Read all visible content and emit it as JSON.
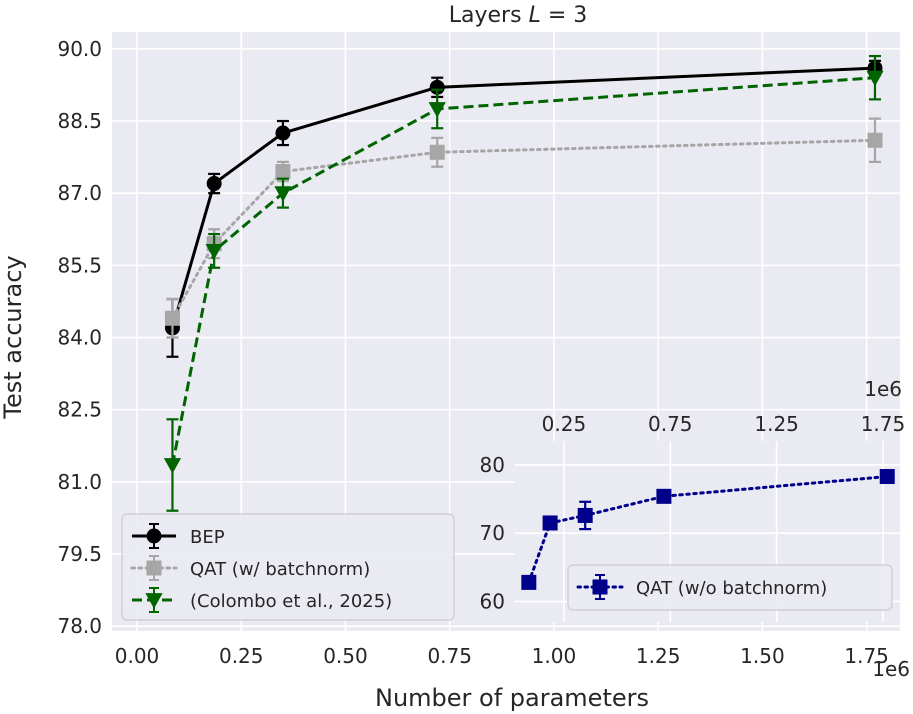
{
  "chart_data": [
    {
      "type": "line",
      "title": "Layers L = 3",
      "title_prefix": "Layers",
      "title_var": "L",
      "title_rest": " = 3",
      "xlabel": "Number of parameters",
      "ylabel": "Test accuracy",
      "x_multiplier_label": "1e6",
      "xlim": [
        -0.06,
        1.83
      ],
      "ylim": [
        77.9,
        90.35
      ],
      "x_ticks": [
        0.0,
        0.25,
        0.5,
        0.75,
        1.0,
        1.25,
        1.5,
        1.75
      ],
      "x_tick_labels": [
        "0.00",
        "0.25",
        "0.50",
        "0.75",
        "1.00",
        "1.25",
        "1.50",
        "1.75"
      ],
      "y_ticks": [
        78.0,
        79.5,
        81.0,
        82.5,
        84.0,
        85.5,
        87.0,
        88.5,
        90.0
      ],
      "y_tick_labels": [
        "78.0",
        "79.5",
        "81.0",
        "82.5",
        "84.0",
        "85.5",
        "87.0",
        "88.5",
        "90.0"
      ],
      "grid": true,
      "legend_position": "lower-left",
      "series": [
        {
          "name": "BEP",
          "color": "#000000",
          "linestyle": "solid",
          "marker": "circle",
          "x": [
            0.085,
            0.185,
            0.35,
            0.72,
            1.77
          ],
          "y": [
            84.2,
            87.2,
            88.25,
            89.2,
            89.6
          ],
          "err": [
            0.6,
            0.2,
            0.25,
            0.2,
            0.15
          ]
        },
        {
          "name": "QAT (w/ batchnorm)",
          "color": "#a6a6a6",
          "linestyle": "dotted",
          "marker": "square",
          "x": [
            0.085,
            0.185,
            0.35,
            0.72,
            1.77
          ],
          "y": [
            84.4,
            85.95,
            87.45,
            87.85,
            88.1
          ],
          "err": [
            0.4,
            0.3,
            0.2,
            0.3,
            0.45
          ]
        },
        {
          "name": "(Colombo et al., 2025)",
          "color": "#006400",
          "linestyle": "dashed",
          "marker": "triangle-down",
          "x": [
            0.085,
            0.185,
            0.35,
            0.72,
            1.77
          ],
          "y": [
            81.35,
            85.8,
            87.0,
            88.75,
            89.4
          ],
          "err": [
            0.95,
            0.35,
            0.3,
            0.4,
            0.45
          ]
        }
      ]
    },
    {
      "type": "line",
      "inset": true,
      "x_multiplier_label": "1e6",
      "x_axis_position": "top",
      "xlim": [
        0.02,
        1.83
      ],
      "ylim": [
        57,
        83.5
      ],
      "x_ticks": [
        0.25,
        0.75,
        1.25,
        1.75
      ],
      "x_tick_labels": [
        "0.25",
        "0.75",
        "1.25",
        "1.75"
      ],
      "y_ticks": [
        60,
        70,
        80
      ],
      "y_tick_labels": [
        "60",
        "70",
        "80"
      ],
      "grid": true,
      "legend_position": "bottom-right",
      "series": [
        {
          "name": "QAT (w/o batchnorm)",
          "color": "#00008b",
          "linestyle": "dotted",
          "marker": "square",
          "x": [
            0.085,
            0.185,
            0.35,
            0.72,
            1.77
          ],
          "y": [
            62.8,
            71.5,
            72.6,
            75.4,
            78.3
          ],
          "err": [
            0.3,
            0.9,
            2.0,
            0.6,
            0.5
          ]
        }
      ]
    }
  ]
}
